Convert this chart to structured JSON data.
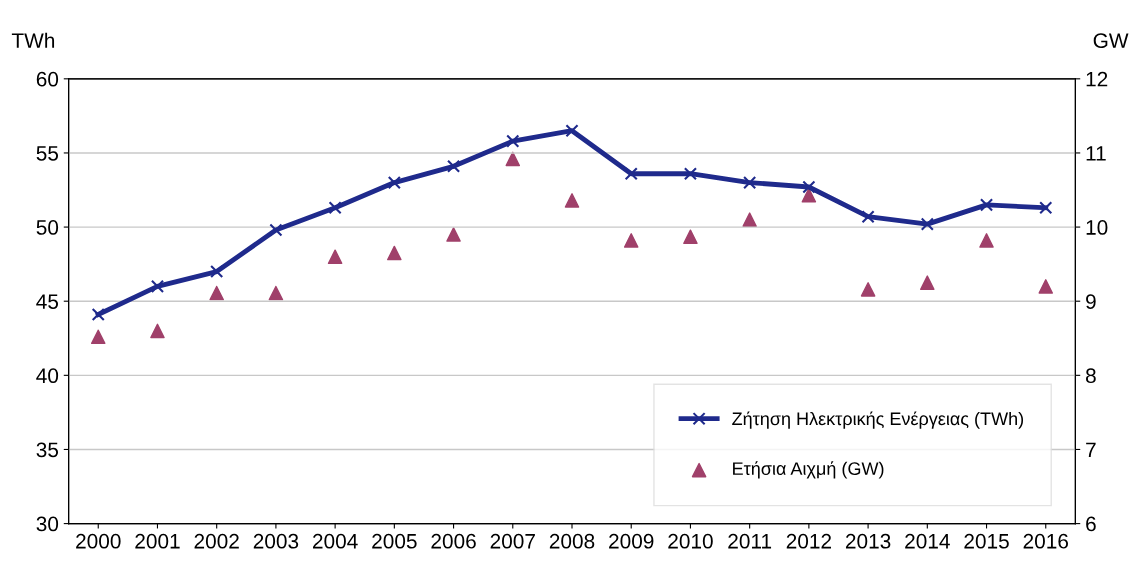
{
  "chart_data": {
    "type": "line",
    "categories": [
      "2000",
      "2001",
      "2002",
      "2003",
      "2004",
      "2005",
      "2006",
      "2007",
      "2008",
      "2009",
      "2010",
      "2011",
      "2012",
      "2013",
      "2014",
      "2015",
      "2016"
    ],
    "ylabel": "TWh",
    "y2label": "GW",
    "ylim": [
      30,
      60
    ],
    "yticks": [
      30,
      35,
      40,
      45,
      50,
      55,
      60
    ],
    "y2lim": [
      6,
      12
    ],
    "y2ticks": [
      6,
      7,
      8,
      9,
      10,
      11,
      12
    ],
    "grid": "y",
    "legend": "bottom right",
    "series": [
      {
        "name": "Ζήτηση Ηλεκτρικής Ενέργειας (TWh)",
        "color": "#1f2a8c",
        "marker": "cross",
        "values": [
          44.1,
          46.0,
          47.0,
          49.8,
          51.3,
          53.0,
          54.1,
          55.8,
          56.5,
          53.6,
          53.6,
          53.0,
          52.7,
          50.7,
          50.2,
          51.5,
          51.3
        ]
      },
      {
        "name": "Ετήσια Αιχμή (GW)",
        "type": "scatter",
        "axis": "y2",
        "color": "#a0406a",
        "marker": "triangle",
        "values": [
          8.52,
          8.6,
          9.11,
          9.11,
          9.6,
          9.65,
          9.9,
          10.92,
          10.36,
          9.82,
          9.87,
          10.1,
          10.43,
          9.16,
          9.25,
          9.82,
          9.2
        ]
      }
    ]
  }
}
